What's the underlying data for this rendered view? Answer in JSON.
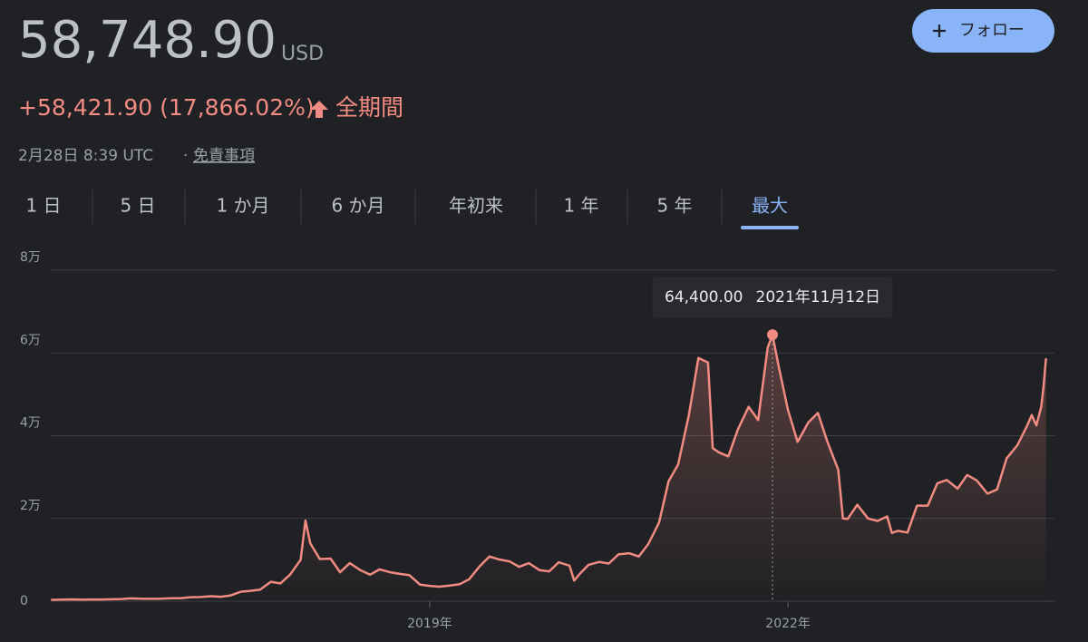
{
  "header": {
    "price": "58,748.90",
    "currency": "USD",
    "change": "+58,421.90 (17,866.02%)",
    "period": "全期間",
    "timestamp": "2月28日 8:39 UTC",
    "disclaimer": "免責事項",
    "follow": "フォロー"
  },
  "tabs": [
    "1 日",
    "5 日",
    "1 か月",
    "6 か月",
    "年初来",
    "1 年",
    "5 年",
    "最大"
  ],
  "active_tab": 7,
  "chart_data": {
    "type": "line",
    "color": "#f28b82",
    "grid": true,
    "x": [
      2015.83,
      2015.92,
      2016.0,
      2016.08,
      2016.17,
      2016.25,
      2016.33,
      2016.42,
      2016.5,
      2016.58,
      2016.67,
      2016.75,
      2016.83,
      2016.92,
      2017.0,
      2017.08,
      2017.17,
      2017.25,
      2017.33,
      2017.42,
      2017.5,
      2017.58,
      2017.67,
      2017.75,
      2017.83,
      2017.92,
      2017.96,
      2018.0,
      2018.08,
      2018.17,
      2018.25,
      2018.33,
      2018.42,
      2018.5,
      2018.58,
      2018.67,
      2018.75,
      2018.83,
      2018.92,
      2019.0,
      2019.08,
      2019.17,
      2019.25,
      2019.33,
      2019.42,
      2019.5,
      2019.58,
      2019.67,
      2019.75,
      2019.83,
      2019.92,
      2020.0,
      2020.08,
      2020.17,
      2020.21,
      2020.25,
      2020.33,
      2020.42,
      2020.5,
      2020.58,
      2020.67,
      2020.75,
      2020.83,
      2020.92,
      2021.0,
      2021.08,
      2021.17,
      2021.25,
      2021.33,
      2021.37,
      2021.42,
      2021.5,
      2021.58,
      2021.67,
      2021.75,
      2021.83,
      2021.87,
      2021.92,
      2022.0,
      2022.08,
      2022.17,
      2022.25,
      2022.33,
      2022.42,
      2022.46,
      2022.5,
      2022.58,
      2022.67,
      2022.75,
      2022.83,
      2022.87,
      2022.92,
      2023.0,
      2023.08,
      2023.17,
      2023.25,
      2023.33,
      2023.42,
      2023.5,
      2023.58,
      2023.67,
      2023.75,
      2023.83,
      2023.92,
      2024.0,
      2024.04,
      2024.08,
      2024.12,
      2024.14,
      2024.16
    ],
    "values": [
      330,
      380,
      430,
      380,
      420,
      420,
      450,
      530,
      670,
      620,
      580,
      610,
      700,
      740,
      960,
      1000,
      1200,
      1080,
      1350,
      2300,
      2500,
      2800,
      4700,
      4300,
      6400,
      10000,
      19500,
      14000,
      10200,
      10300,
      7000,
      9200,
      7500,
      6400,
      7700,
      7000,
      6600,
      6300,
      4000,
      3700,
      3500,
      3800,
      4100,
      5300,
      8500,
      10800,
      10100,
      9600,
      8300,
      9200,
      7500,
      7200,
      9400,
      8600,
      5000,
      6400,
      8800,
      9500,
      9100,
      11300,
      11600,
      10800,
      13800,
      19000,
      29000,
      33000,
      45000,
      58800,
      57700,
      37000,
      36000,
      35000,
      41500,
      47000,
      43800,
      61300,
      64400,
      57000,
      46200,
      38500,
      43200,
      45500,
      38500,
      31800,
      20000,
      19900,
      23300,
      20000,
      19400,
      20500,
      16500,
      17000,
      16600,
      23100,
      23100,
      28500,
      29300,
      27200,
      30500,
      29200,
      26000,
      27000,
      34500,
      37700,
      42300,
      45000,
      42500,
      47000,
      52000,
      58700
    ],
    "xlim": [
      2015.82,
      2024.17
    ],
    "xticks": [
      {
        "value": 2019,
        "label": "2019年"
      },
      {
        "value": 2022,
        "label": "2022年"
      }
    ],
    "ylim": [
      0,
      80000
    ],
    "yticks": [
      {
        "value": 0,
        "label": "0"
      },
      {
        "value": 20000,
        "label": "2万"
      },
      {
        "value": 40000,
        "label": "4万"
      },
      {
        "value": 60000,
        "label": "6万"
      },
      {
        "value": 80000,
        "label": "8万"
      }
    ],
    "annotation": {
      "x": 2021.87,
      "value": 64400,
      "value_label": "64,400.00",
      "date": "2021年11月12日"
    }
  }
}
